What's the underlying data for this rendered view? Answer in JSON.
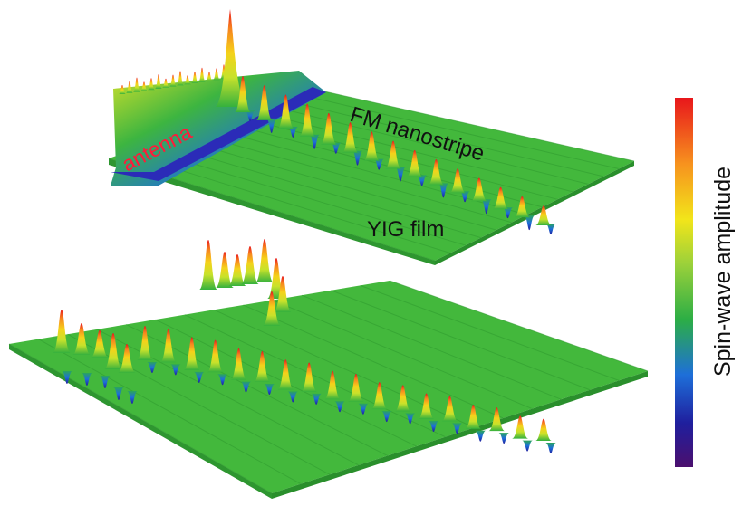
{
  "panels": [
    {
      "id": "top",
      "labels": {
        "antenna": "antenna",
        "nanostripe": "FM nanostripe",
        "film": "YIG film"
      }
    },
    {
      "id": "bottom",
      "labels": {}
    }
  ],
  "colorbar": {
    "label": "Spin-wave amplitude",
    "colors": [
      "#e8161b",
      "#f7931e",
      "#f2e51a",
      "#7ac943",
      "#22a84a",
      "#1e6fd9",
      "#1f1f9e",
      "#4b0f6e"
    ]
  },
  "colors": {
    "film_green": "#3fb83a",
    "film_dark": "#2a8f2c",
    "antenna_blue": "#2b2bc4",
    "antenna_label": "#ff1a3a"
  }
}
